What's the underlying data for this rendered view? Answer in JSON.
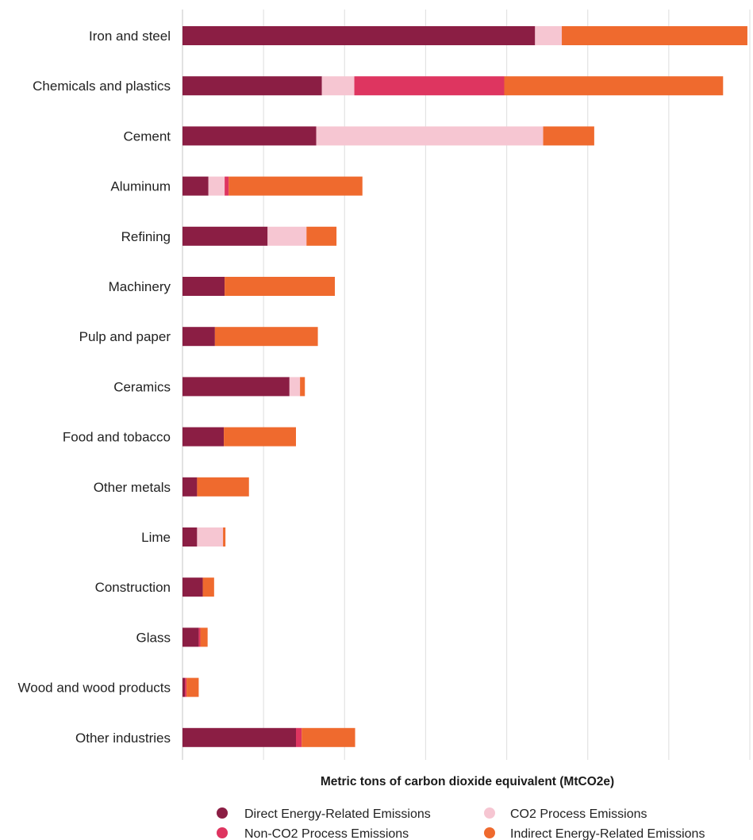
{
  "chart_data": {
    "type": "bar",
    "orientation": "horizontal",
    "stacked": true,
    "categories": [
      "Iron and steel",
      "Chemicals and plastics",
      "Cement",
      "Aluminum",
      "Refining",
      "Machinery",
      "Pulp and paper",
      "Ceramics",
      "Food and tobacco",
      "Other metals",
      "Lime",
      "Construction",
      "Glass",
      "Wood and wood products",
      "Other industries"
    ],
    "series": [
      {
        "name": "Direct Energy-Related Emissions",
        "color": "#8b1e44",
        "values": [
          4.35,
          1.72,
          1.65,
          0.32,
          1.05,
          0.52,
          0.4,
          1.32,
          0.51,
          0.18,
          0.18,
          0.25,
          0.2,
          0.03,
          1.4
        ]
      },
      {
        "name": "CO2 Process Emissions",
        "color": "#f6c6d2",
        "values": [
          0.33,
          0.4,
          2.8,
          0.2,
          0.48,
          0.0,
          0.0,
          0.13,
          0.0,
          0.0,
          0.32,
          0.0,
          0.0,
          0.0,
          0.0
        ]
      },
      {
        "name": "Non-CO2 Process Emissions",
        "color": "#de3560",
        "values": [
          0.0,
          1.85,
          0.0,
          0.05,
          0.0,
          0.0,
          0.0,
          0.0,
          0.0,
          0.0,
          0.0,
          0.0,
          0.02,
          0.02,
          0.07
        ]
      },
      {
        "name": "Indirect Energy-Related Emissions",
        "color": "#ef6a2e",
        "values": [
          2.29,
          2.7,
          0.63,
          1.65,
          0.37,
          1.36,
          1.27,
          0.06,
          0.89,
          0.64,
          0.03,
          0.14,
          0.09,
          0.15,
          0.66
        ]
      }
    ],
    "xlabel": "Metric tons of carbon dioxide equivalent (MtCO2e)",
    "ylabel": "",
    "title": "",
    "xlim": [
      0,
      7
    ],
    "grid": true,
    "legend_position": "bottom",
    "tick_labels_shown": false
  }
}
